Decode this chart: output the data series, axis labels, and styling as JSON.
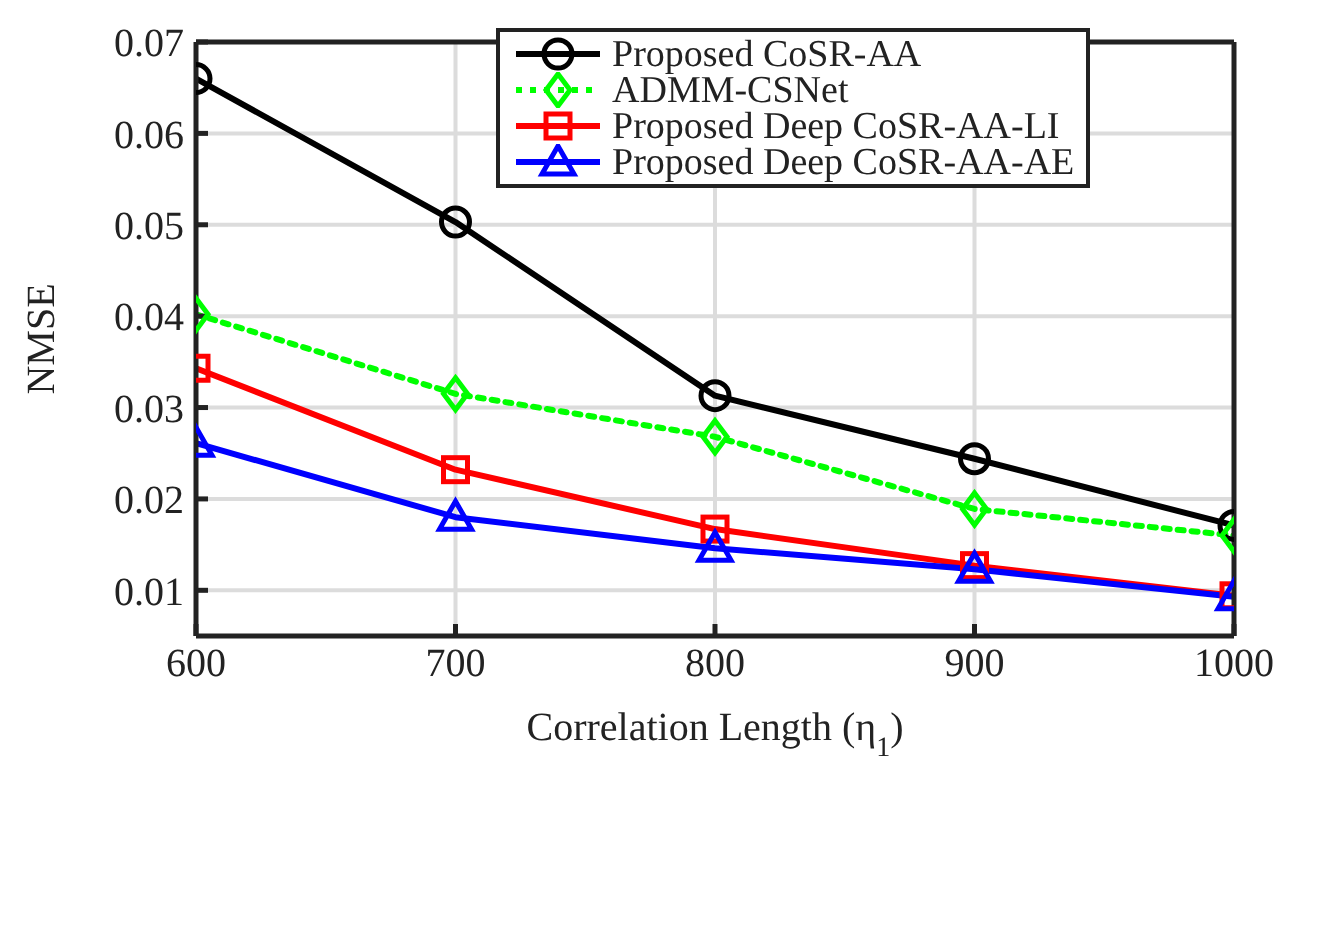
{
  "chart_data": {
    "type": "line",
    "xlabel": "Correlation Length (η$_{1}$)",
    "ylabel": "NMSE",
    "x": [
      600,
      700,
      800,
      900,
      1000
    ],
    "xlim": [
      600,
      1000
    ],
    "xticks": [
      600,
      700,
      800,
      900,
      1000
    ],
    "ylim": [
      0.005,
      0.07
    ],
    "yticks": [
      0.01,
      0.02,
      0.03,
      0.04,
      0.05,
      0.06,
      0.07
    ],
    "grid": true,
    "legend": "top right",
    "series": [
      {
        "name": "Proposed CoSR-AA",
        "color": "#000000",
        "marker": "circle",
        "line_style": "solid",
        "values": [
          0.066,
          0.0503,
          0.0313,
          0.0244,
          0.0171
        ]
      },
      {
        "name": "ADMM-CSNet",
        "color": "#00ff00",
        "marker": "diamond",
        "line_style": "dotted",
        "values": [
          0.0402,
          0.0315,
          0.0268,
          0.0189,
          0.016
        ]
      },
      {
        "name": "Proposed Deep CoSR-AA-LI",
        "color": "#ff0000",
        "marker": "square",
        "line_style": "solid",
        "values": [
          0.0343,
          0.0232,
          0.0167,
          0.0127,
          0.0094
        ]
      },
      {
        "name": "Proposed Deep CoSR-AA-AE",
        "color": "#0000ff",
        "marker": "triangle",
        "line_style": "solid",
        "values": [
          0.0261,
          0.018,
          0.0146,
          0.0123,
          0.0093
        ]
      }
    ]
  }
}
